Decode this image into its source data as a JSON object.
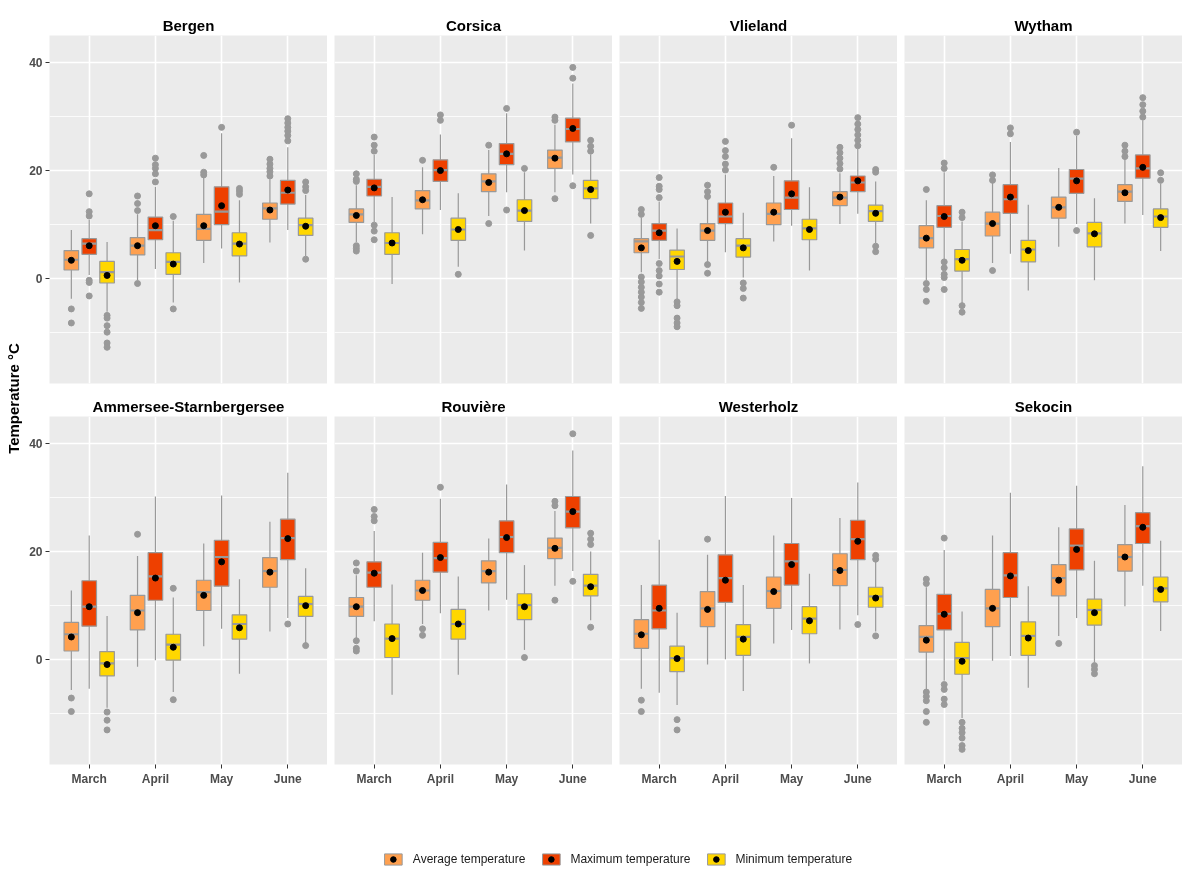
{
  "chart_data": [
    {
      "type": "box",
      "title": "Bergen",
      "ylabel": "Temperature °C",
      "legend": "bottom",
      "categories": [
        "March",
        "April",
        "May",
        "June"
      ],
      "ylim": [
        -19.4,
        45
      ],
      "yticks": [
        {
          "value": -10,
          "label": null
        },
        0,
        {
          "value": 10,
          "label": null
        },
        20,
        {
          "value": 30,
          "label": null
        },
        40
      ],
      "grid": true,
      "tick_labels": "y",
      "series": [
        {
          "name": "Average temperature",
          "color": "#ffa04f",
          "boxes": [
            {
              "low": -3.7,
              "q1": 1.6,
              "median": 3.5,
              "q3": 5.2,
              "high": 9.0,
              "mean": 3.4,
              "outliers": [
                -5.6,
                -8.2
              ]
            },
            {
              "low": -0.3,
              "q1": 4.4,
              "median": 6.1,
              "q3": 7.6,
              "high": 11.9,
              "mean": 6.1,
              "outliers": [
                12.6,
                13.9,
                15.3,
                -0.9
              ]
            },
            {
              "low": 2.9,
              "q1": 7.1,
              "median": 9.2,
              "q3": 11.9,
              "high": 18.7,
              "mean": 9.8,
              "outliers": [
                19.2,
                19.7,
                22.8
              ]
            },
            {
              "low": 6.7,
              "q1": 11.0,
              "median": 13.0,
              "q3": 14.0,
              "high": 18.4,
              "mean": 12.7,
              "outliers": [
                19.0,
                19.8,
                20.4,
                21.2,
                22.1
              ]
            }
          ]
        },
        {
          "name": "Maximum temperature",
          "color": "#ee4000",
          "boxes": [
            {
              "low": 0.7,
              "q1": 4.5,
              "median": 6.5,
              "q3": 7.4,
              "high": 10.9,
              "mean": 6.1,
              "outliers": [
                11.6,
                12.4,
                15.7,
                -0.3,
                -0.7,
                -3.2
              ]
            },
            {
              "low": 1.8,
              "q1": 7.2,
              "median": 9.0,
              "q3": 11.4,
              "high": 17.0,
              "mean": 9.8,
              "outliers": [
                17.9,
                19.4,
                20.4,
                21.1,
                22.3
              ]
            },
            {
              "low": 5.6,
              "q1": 10.0,
              "median": 12.4,
              "q3": 17.0,
              "high": 26.9,
              "mean": 13.5,
              "outliers": [
                28.0
              ]
            },
            {
              "low": 9.0,
              "q1": 13.8,
              "median": 15.9,
              "q3": 18.2,
              "high": 24.3,
              "mean": 16.4,
              "outliers": [
                25.5,
                26.5,
                27.3,
                28.0,
                28.8,
                29.6
              ]
            }
          ]
        },
        {
          "name": "Minimum temperature",
          "color": "#ffd700",
          "boxes": [
            {
              "low": -6.1,
              "q1": -0.8,
              "median": 1.2,
              "q3": 3.2,
              "high": 6.8,
              "mean": 0.6,
              "outliers": [
                -6.8,
                -7.3,
                -8.7,
                -9.9,
                -11.9,
                -12.7
              ]
            },
            {
              "low": -4.4,
              "q1": 0.8,
              "median": 3.1,
              "q3": 4.8,
              "high": 10.7,
              "mean": 2.7,
              "outliers": [
                11.5,
                -5.6
              ]
            },
            {
              "low": -0.7,
              "q1": 4.2,
              "median": 6.5,
              "q3": 8.5,
              "high": 14.5,
              "mean": 6.4,
              "outliers": [
                15.6,
                16.2,
                16.7
              ]
            },
            {
              "low": 4.2,
              "q1": 8.0,
              "median": 9.9,
              "q3": 11.2,
              "high": 15.5,
              "mean": 9.7,
              "outliers": [
                16.3,
                17.0,
                17.9,
                3.6
              ]
            }
          ]
        }
      ]
    },
    {
      "type": "box",
      "title": "Corsica",
      "categories": [
        "March",
        "April",
        "May",
        "June"
      ],
      "ylim": [
        -19.4,
        45
      ],
      "yticks": [
        {
          "value": -10,
          "label": null
        },
        0,
        {
          "value": 10,
          "label": null
        },
        20,
        {
          "value": 30,
          "label": null
        },
        40
      ],
      "grid": true,
      "tick_labels": false,
      "series": [
        {
          "color": "#ffa04f",
          "boxes": [
            {
              "low": 6.8,
              "q1": 10.4,
              "median": 11.9,
              "q3": 12.9,
              "high": 17.3,
              "mean": 11.7,
              "outliers": [
                18.0,
                18.4,
                19.4,
                6.1,
                5.6,
                5.1
              ]
            },
            {
              "low": 8.2,
              "q1": 12.9,
              "median": 14.5,
              "q3": 16.3,
              "high": 20.6,
              "mean": 14.6,
              "outliers": [
                21.9
              ]
            },
            {
              "low": 11.6,
              "q1": 16.1,
              "median": 18.0,
              "q3": 19.4,
              "high": 23.8,
              "mean": 17.8,
              "outliers": [
                24.7,
                10.2
              ]
            },
            {
              "low": 16.0,
              "q1": 20.4,
              "median": 22.4,
              "q3": 23.8,
              "high": 28.5,
              "mean": 22.3,
              "outliers": [
                29.3,
                29.9,
                14.8
              ]
            }
          ]
        },
        {
          "color": "#ee4000",
          "boxes": [
            {
              "low": 10.5,
              "q1": 15.3,
              "median": 17.0,
              "q3": 18.4,
              "high": 22.9,
              "mean": 16.8,
              "outliers": [
                23.6,
                24.7,
                26.2,
                9.9,
                8.8,
                7.2
              ]
            },
            {
              "low": 12.7,
              "q1": 18.0,
              "median": 20.1,
              "q3": 22.0,
              "high": 26.7,
              "mean": 20.0,
              "outliers": [
                29.3,
                30.3
              ]
            },
            {
              "low": 16.0,
              "q1": 21.1,
              "median": 23.1,
              "q3": 25.0,
              "high": 30.6,
              "mean": 23.1,
              "outliers": [
                31.5,
                12.7
              ]
            },
            {
              "low": 19.3,
              "q1": 25.3,
              "median": 27.7,
              "q3": 29.7,
              "high": 36.1,
              "mean": 27.8,
              "outliers": [
                37.1,
                39.1,
                17.2
              ]
            }
          ]
        },
        {
          "color": "#ffd700",
          "boxes": [
            {
              "low": -1.0,
              "q1": 4.5,
              "median": 6.6,
              "q3": 8.5,
              "high": 15.1,
              "mean": 6.6
            },
            {
              "low": 2.2,
              "q1": 7.1,
              "median": 9.1,
              "q3": 11.2,
              "high": 15.8,
              "mean": 9.1,
              "outliers": [
                0.8
              ]
            },
            {
              "low": 5.2,
              "q1": 10.6,
              "median": 12.6,
              "q3": 14.6,
              "high": 19.7,
              "mean": 12.6,
              "outliers": [
                20.4
              ]
            },
            {
              "low": 10.2,
              "q1": 14.8,
              "median": 16.7,
              "q3": 18.2,
              "high": 23.0,
              "mean": 16.5,
              "outliers": [
                23.6,
                24.5,
                25.6,
                8.0
              ]
            }
          ]
        }
      ]
    },
    {
      "type": "box",
      "title": "Vlieland",
      "categories": [
        "March",
        "April",
        "May",
        "June"
      ],
      "ylim": [
        -19.4,
        45
      ],
      "yticks": [
        {
          "value": -10,
          "label": null
        },
        0,
        {
          "value": 10,
          "label": null
        },
        20,
        {
          "value": 30,
          "label": null
        },
        40
      ],
      "grid": true,
      "tick_labels": false,
      "series": [
        {
          "color": "#ffa04f",
          "boxes": [
            {
              "low": 1.2,
              "q1": 4.8,
              "median": 6.9,
              "q3": 7.4,
              "high": 11.3,
              "mean": 5.7,
              "outliers": [
                11.9,
                12.8,
                0.3,
                -0.6,
                -1.6,
                -2.5,
                -3.4,
                -4.4,
                -5.5
              ]
            },
            {
              "low": 3.1,
              "q1": 7.1,
              "median": 8.9,
              "q3": 10.2,
              "high": 14.9,
              "mean": 8.9,
              "outliers": [
                15.2,
                16.1,
                17.3,
                2.6,
                1.0
              ]
            },
            {
              "low": 6.9,
              "q1": 10.0,
              "median": 12.0,
              "q3": 14.0,
              "high": 19.0,
              "mean": 12.3,
              "outliers": [
                20.6
              ]
            },
            {
              "low": 10.1,
              "q1": 13.5,
              "median": 15.0,
              "q3": 16.1,
              "high": 19.5,
              "mean": 15.1,
              "outliers": [
                20.3,
                21.3,
                22.3,
                23.3,
                24.3
              ]
            }
          ]
        },
        {
          "color": "#ee4000",
          "boxes": [
            {
              "low": 3.6,
              "q1": 7.1,
              "median": 8.9,
              "q3": 10.2,
              "high": 14.3,
              "mean": 8.5,
              "outliers": [
                15.0,
                16.5,
                17.1,
                18.7,
                2.8,
                1.5,
                0.5,
                -1.0,
                -2.5
              ]
            },
            {
              "low": 4.9,
              "q1": 10.2,
              "median": 11.5,
              "q3": 14.0,
              "high": 19.3,
              "mean": 12.3,
              "outliers": [
                20.1,
                21.2,
                22.6,
                23.7,
                25.4
              ]
            },
            {
              "low": 9.8,
              "q1": 12.8,
              "median": 15.0,
              "q3": 18.1,
              "high": 26.0,
              "mean": 15.7,
              "outliers": [
                28.4
              ]
            },
            {
              "low": 12.0,
              "q1": 16.1,
              "median": 17.8,
              "q3": 19.0,
              "high": 24.0,
              "mean": 18.1,
              "outliers": [
                24.6,
                25.6,
                26.6,
                27.6,
                28.6,
                29.8
              ]
            }
          ]
        },
        {
          "color": "#ffd700",
          "boxes": [
            {
              "low": -3.8,
              "q1": 1.7,
              "median": 4.1,
              "q3": 5.3,
              "high": 9.3,
              "mean": 3.2,
              "outliers": [
                -4.3,
                -5.0,
                -7.3,
                -8.2,
                -8.9
              ]
            },
            {
              "low": 0.2,
              "q1": 4.0,
              "median": 6.1,
              "q3": 7.4,
              "high": 12.2,
              "mean": 5.7,
              "outliers": [
                -0.8,
                -1.8,
                -3.6
              ]
            },
            {
              "low": 1.5,
              "q1": 7.2,
              "median": 9.3,
              "q3": 11.0,
              "high": 16.9,
              "mean": 9.1
            },
            {
              "low": 6.6,
              "q1": 10.6,
              "median": 12.5,
              "q3": 13.6,
              "high": 18.0,
              "mean": 12.1,
              "outliers": [
                19.7,
                20.2,
                6.0,
                5.0
              ]
            }
          ]
        }
      ]
    },
    {
      "type": "box",
      "title": "Wytham",
      "categories": [
        "March",
        "April",
        "May",
        "June"
      ],
      "ylim": [
        -19.4,
        45
      ],
      "yticks": [
        {
          "value": -10,
          "label": null
        },
        0,
        {
          "value": 10,
          "label": null
        },
        20,
        {
          "value": 30,
          "label": null
        },
        40
      ],
      "grid": true,
      "tick_labels": false,
      "series": [
        {
          "color": "#ffa04f",
          "boxes": [
            {
              "low": -0.3,
              "q1": 5.7,
              "median": 7.5,
              "q3": 9.8,
              "high": 14.5,
              "mean": 7.5,
              "outliers": [
                16.5,
                -0.9,
                -2.0,
                -4.2
              ]
            },
            {
              "low": 2.9,
              "q1": 7.9,
              "median": 10.2,
              "q3": 12.3,
              "high": 17.7,
              "mean": 10.2,
              "outliers": [
                18.2,
                19.2,
                1.5
              ]
            },
            {
              "low": 5.9,
              "q1": 11.2,
              "median": 13.2,
              "q3": 15.1,
              "high": 20.5,
              "mean": 13.2
            },
            {
              "low": 10.2,
              "q1": 14.3,
              "median": 16.1,
              "q3": 17.4,
              "high": 22.1,
              "mean": 15.9,
              "outliers": [
                22.6,
                23.6,
                24.7
              ]
            }
          ]
        },
        {
          "color": "#ee4000",
          "boxes": [
            {
              "low": 3.6,
              "q1": 9.5,
              "median": 11.6,
              "q3": 13.5,
              "high": 19.7,
              "mean": 11.5,
              "outliers": [
                20.4,
                21.4,
                3.1,
                2.0,
                0.8,
                0.2,
                -2.0
              ]
            },
            {
              "low": 4.6,
              "q1": 12.1,
              "median": 14.7,
              "q3": 17.4,
              "high": 25.3,
              "mean": 15.1,
              "outliers": [
                26.8,
                27.9
              ]
            },
            {
              "low": 10.1,
              "q1": 15.8,
              "median": 18.5,
              "q3": 20.2,
              "high": 26.4,
              "mean": 18.1,
              "outliers": [
                27.1,
                8.9
              ]
            },
            {
              "low": 11.8,
              "q1": 18.6,
              "median": 20.4,
              "q3": 22.9,
              "high": 29.3,
              "mean": 20.6,
              "outliers": [
                29.9,
                31.0,
                32.2,
                33.5
              ]
            }
          ]
        },
        {
          "color": "#ffd700",
          "boxes": [
            {
              "low": -4.5,
              "q1": 1.4,
              "median": 3.6,
              "q3": 5.4,
              "high": 10.6,
              "mean": 3.4,
              "outliers": [
                11.3,
                12.3,
                -5.0,
                -6.2
              ]
            },
            {
              "low": -2.2,
              "q1": 3.1,
              "median": 5.4,
              "q3": 7.1,
              "high": 13.7,
              "mean": 5.2
            },
            {
              "low": -0.3,
              "q1": 5.9,
              "median": 8.4,
              "q3": 10.4,
              "high": 14.9,
              "mean": 8.3
            },
            {
              "low": 5.1,
              "q1": 9.5,
              "median": 11.5,
              "q3": 12.9,
              "high": 17.6,
              "mean": 11.3,
              "outliers": [
                18.2,
                19.6
              ]
            }
          ]
        }
      ]
    },
    {
      "type": "box",
      "title": "Ammersee-Starnbergersee",
      "categories": [
        "March",
        "April",
        "May",
        "June"
      ],
      "ylim": [
        -19.4,
        45
      ],
      "yticks": [
        {
          "value": -10,
          "label": null
        },
        0,
        {
          "value": 10,
          "label": null
        },
        20,
        {
          "value": 30,
          "label": null
        },
        40
      ],
      "grid": true,
      "series": [
        {
          "color": "#ffa04f",
          "boxes": [
            {
              "low": -5.6,
              "q1": 1.6,
              "median": 4.7,
              "q3": 6.9,
              "high": 12.8,
              "mean": 4.2,
              "outliers": [
                -7.1,
                -9.6
              ]
            },
            {
              "low": -1.3,
              "q1": 5.5,
              "median": 9.1,
              "q3": 11.9,
              "high": 19.2,
              "mean": 8.7,
              "outliers": [
                23.2
              ]
            },
            {
              "low": 2.5,
              "q1": 9.1,
              "median": 12.5,
              "q3": 14.7,
              "high": 21.5,
              "mean": 11.9
            },
            {
              "low": 5.2,
              "q1": 13.4,
              "median": 16.4,
              "q3": 18.9,
              "high": 25.5,
              "mean": 16.2
            }
          ]
        },
        {
          "color": "#ee4000",
          "boxes": [
            {
              "low": -5.4,
              "q1": 6.2,
              "median": 9.8,
              "q3": 14.6,
              "high": 23.0,
              "mean": 9.8
            },
            {
              "low": -0.1,
              "q1": 11.0,
              "median": 15.4,
              "q3": 19.8,
              "high": 30.2,
              "mean": 15.1
            },
            {
              "low": 5.7,
              "q1": 13.6,
              "median": 19.0,
              "q3": 22.1,
              "high": 30.4,
              "mean": 18.1
            },
            {
              "low": 7.7,
              "q1": 18.5,
              "median": 22.5,
              "q3": 26.0,
              "high": 34.6,
              "mean": 22.4,
              "outliers": [
                6.6
              ]
            }
          ]
        },
        {
          "color": "#ffd700",
          "boxes": [
            {
              "low": -8.9,
              "q1": -3.0,
              "median": -0.7,
              "q3": 1.5,
              "high": 8.1,
              "mean": -0.9,
              "outliers": [
                -9.7,
                -11.2,
                -13.0
              ]
            },
            {
              "low": -6.0,
              "q1": -0.1,
              "median": 2.8,
              "q3": 4.7,
              "high": 11.5,
              "mean": 2.3,
              "outliers": [
                13.2,
                -7.4
              ]
            },
            {
              "low": -2.6,
              "q1": 3.8,
              "median": 6.6,
              "q3": 8.3,
              "high": 14.9,
              "mean": 5.9
            },
            {
              "low": 3.1,
              "q1": 8.0,
              "median": 10.3,
              "q3": 11.7,
              "high": 16.9,
              "mean": 10.0,
              "outliers": [
                2.6
              ]
            }
          ]
        }
      ]
    },
    {
      "type": "box",
      "title": "Rouvière",
      "categories": [
        "March",
        "April",
        "May",
        "June"
      ],
      "ylim": [
        -19.4,
        45
      ],
      "yticks": [
        {
          "value": -10,
          "label": null
        },
        0,
        {
          "value": 10,
          "label": null
        },
        20,
        {
          "value": 30,
          "label": null
        },
        40
      ],
      "grid": true,
      "tick_labels": "x",
      "series": [
        {
          "color": "#ffa04f",
          "boxes": [
            {
              "low": 4.0,
              "q1": 8.0,
              "median": 9.8,
              "q3": 11.5,
              "high": 15.6,
              "mean": 9.8,
              "outliers": [
                16.4,
                17.9,
                3.5,
                2.1,
                1.6
              ]
            },
            {
              "low": 6.6,
              "q1": 11.0,
              "median": 12.8,
              "q3": 14.7,
              "high": 19.8,
              "mean": 12.8,
              "outliers": [
                5.7,
                4.5
              ]
            },
            {
              "low": 9.1,
              "q1": 14.2,
              "median": 16.4,
              "q3": 18.3,
              "high": 22.4,
              "mean": 16.2
            },
            {
              "low": 13.7,
              "q1": 18.7,
              "median": 20.7,
              "q3": 22.5,
              "high": 27.5,
              "mean": 20.6,
              "outliers": [
                28.5,
                29.3,
                11.0
              ]
            }
          ]
        },
        {
          "color": "#ee4000",
          "boxes": [
            {
              "low": 7.1,
              "q1": 13.4,
              "median": 16.1,
              "q3": 18.1,
              "high": 23.8,
              "mean": 16.0,
              "outliers": [
                25.7,
                26.5,
                27.8
              ]
            },
            {
              "low": 8.6,
              "q1": 16.2,
              "median": 18.8,
              "q3": 21.7,
              "high": 29.8,
              "mean": 18.9,
              "outliers": [
                31.9
              ]
            },
            {
              "low": 11.1,
              "q1": 19.8,
              "median": 22.7,
              "q3": 25.7,
              "high": 32.4,
              "mean": 22.6
            },
            {
              "low": 16.4,
              "q1": 24.4,
              "median": 27.4,
              "q3": 30.2,
              "high": 38.7,
              "mean": 27.4,
              "outliers": [
                41.8,
                14.5
              ]
            }
          ]
        },
        {
          "color": "#ffd700",
          "boxes": [
            {
              "low": -6.5,
              "q1": 0.4,
              "median": 3.9,
              "q3": 6.6,
              "high": 13.9,
              "mean": 3.9
            },
            {
              "low": -2.8,
              "q1": 3.8,
              "median": 6.6,
              "q3": 9.3,
              "high": 15.4,
              "mean": 6.6
            },
            {
              "low": 1.8,
              "q1": 7.4,
              "median": 10.1,
              "q3": 12.2,
              "high": 17.5,
              "mean": 9.8,
              "outliers": [
                0.4
              ]
            },
            {
              "low": 7.3,
              "q1": 11.8,
              "median": 13.7,
              "q3": 15.8,
              "high": 20.0,
              "mean": 13.5,
              "outliers": [
                21.3,
                22.3,
                23.4,
                6.0
              ]
            }
          ]
        }
      ]
    },
    {
      "type": "box",
      "title": "Westerholz",
      "categories": [
        "March",
        "April",
        "May",
        "June"
      ],
      "ylim": [
        -19.4,
        45
      ],
      "yticks": [
        {
          "value": -10,
          "label": null
        },
        0,
        {
          "value": 10,
          "label": null
        },
        20,
        {
          "value": 30,
          "label": null
        },
        40
      ],
      "grid": true,
      "tick_labels": "x",
      "series": [
        {
          "color": "#ffa04f",
          "boxes": [
            {
              "low": -5.4,
              "q1": 2.1,
              "median": 4.8,
              "q3": 7.4,
              "high": 13.8,
              "mean": 4.6,
              "outliers": [
                -7.5,
                -9.6
              ]
            },
            {
              "low": -0.9,
              "q1": 6.1,
              "median": 9.5,
              "q3": 12.6,
              "high": 19.4,
              "mean": 9.3,
              "outliers": [
                22.3
              ]
            },
            {
              "low": 3.0,
              "q1": 9.5,
              "median": 12.7,
              "q3": 15.3,
              "high": 23.0,
              "mean": 12.6
            },
            {
              "low": 5.6,
              "q1": 13.7,
              "median": 16.6,
              "q3": 19.6,
              "high": 26.2,
              "mean": 16.5
            }
          ]
        },
        {
          "color": "#ee4000",
          "boxes": [
            {
              "low": -6.1,
              "q1": 5.7,
              "median": 9.1,
              "q3": 13.8,
              "high": 22.2,
              "mean": 9.5
            },
            {
              "low": 0.1,
              "q1": 10.6,
              "median": 15.1,
              "q3": 19.4,
              "high": 30.3,
              "mean": 14.7
            },
            {
              "low": 5.5,
              "q1": 13.8,
              "median": 18.2,
              "q3": 21.5,
              "high": 29.9,
              "mean": 17.6
            },
            {
              "low": 8.2,
              "q1": 18.5,
              "median": 22.3,
              "q3": 25.8,
              "high": 32.8,
              "mean": 21.9,
              "outliers": [
                6.5
              ]
            }
          ]
        },
        {
          "color": "#ffd700",
          "boxes": [
            {
              "low": -8.4,
              "q1": -2.2,
              "median": 0.3,
              "q3": 2.5,
              "high": 8.7,
              "mean": 0.2,
              "outliers": [
                -11.1,
                -13.0
              ]
            },
            {
              "low": -5.8,
              "q1": 0.8,
              "median": 4.2,
              "q3": 6.5,
              "high": 13.8,
              "mean": 3.8
            },
            {
              "low": -0.7,
              "q1": 4.8,
              "median": 7.6,
              "q3": 9.8,
              "high": 15.9,
              "mean": 7.2
            },
            {
              "low": 5.2,
              "q1": 9.7,
              "median": 11.7,
              "q3": 13.4,
              "high": 18.1,
              "mean": 11.4,
              "outliers": [
                18.6,
                19.3,
                4.4
              ]
            }
          ]
        }
      ]
    },
    {
      "type": "box",
      "title": "Sekocin",
      "categories": [
        "March",
        "April",
        "May",
        "June"
      ],
      "ylim": [
        -19.4,
        45
      ],
      "yticks": [
        {
          "value": -10,
          "label": null
        },
        0,
        {
          "value": 10,
          "label": null
        },
        20,
        {
          "value": 30,
          "label": null
        },
        40
      ],
      "grid": true,
      "tick_labels": "x",
      "series": [
        {
          "color": "#ffa04f",
          "boxes": [
            {
              "low": -5.5,
              "q1": 1.4,
              "median": 4.2,
              "q3": 6.3,
              "high": 13.4,
              "mean": 3.6,
              "outliers": [
                14.1,
                14.9,
                -6.0,
                -6.8,
                -7.6,
                -9.6,
                -11.6
              ]
            },
            {
              "low": -0.2,
              "q1": 6.1,
              "median": 9.5,
              "q3": 13.0,
              "high": 23.0,
              "mean": 9.5
            },
            {
              "low": 4.4,
              "q1": 11.8,
              "median": 15.1,
              "q3": 17.6,
              "high": 24.5,
              "mean": 14.7,
              "outliers": [
                3.0
              ]
            },
            {
              "low": 9.9,
              "q1": 16.4,
              "median": 19.0,
              "q3": 21.3,
              "high": 28.6,
              "mean": 19.0
            }
          ]
        },
        {
          "color": "#ee4000",
          "boxes": [
            {
              "low": -3.9,
              "q1": 5.5,
              "median": 8.5,
              "q3": 12.1,
              "high": 20.3,
              "mean": 8.4,
              "outliers": [
                22.5,
                -4.6,
                -5.5,
                -7.3,
                -8.3
              ]
            },
            {
              "low": 0.7,
              "q1": 11.5,
              "median": 15.6,
              "q3": 19.8,
              "high": 30.9,
              "mean": 15.5
            },
            {
              "low": 7.7,
              "q1": 16.6,
              "median": 21.1,
              "q3": 24.2,
              "high": 32.2,
              "mean": 20.4
            },
            {
              "low": 13.7,
              "q1": 21.5,
              "median": 24.7,
              "q3": 27.2,
              "high": 35.8,
              "mean": 24.5
            }
          ]
        },
        {
          "color": "#ffd700",
          "boxes": [
            {
              "low": -10.8,
              "q1": -2.7,
              "median": 0.3,
              "q3": 3.2,
              "high": 8.9,
              "mean": -0.3,
              "outliers": [
                -11.6,
                -12.7,
                -13.5,
                -14.5,
                -15.9,
                -16.6
              ]
            },
            {
              "low": -5.2,
              "q1": 0.8,
              "median": 4.4,
              "q3": 7.0,
              "high": 13.6,
              "mean": 4.0
            },
            {
              "low": -0.5,
              "q1": 6.4,
              "median": 9.2,
              "q3": 11.2,
              "high": 18.3,
              "mean": 8.7,
              "outliers": [
                -1.1,
                -1.8,
                -2.6
              ]
            },
            {
              "low": 5.3,
              "q1": 10.7,
              "median": 13.2,
              "q3": 15.3,
              "high": 22.0,
              "mean": 13.0
            }
          ]
        }
      ]
    }
  ]
}
